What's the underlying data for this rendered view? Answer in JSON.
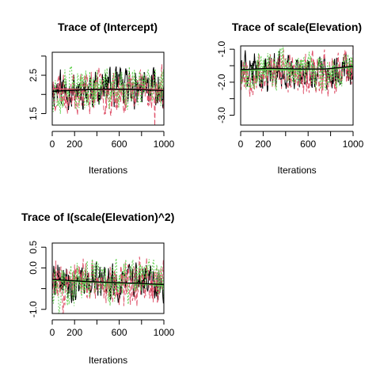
{
  "chart_data": [
    {
      "type": "line",
      "title": "Trace of (Intercept)",
      "xlabel": "Iterations",
      "ylabel": "",
      "xlim": [
        0,
        1000
      ],
      "ylim": [
        1.2,
        3.1
      ],
      "xticks": [
        0,
        200,
        600,
        1000
      ],
      "xtick_labels": [
        "0",
        "200",
        "600",
        "1000"
      ],
      "yticks": [
        1.5,
        2.5
      ],
      "ytick_labels": [
        "1.5",
        "2.5"
      ],
      "ytick_minor": [
        1.5,
        2.0,
        2.5,
        3.0
      ],
      "chains": [
        {
          "color": "#000000",
          "dash": "",
          "center": 2.15,
          "spread": 0.28,
          "seed": 11
        },
        {
          "color": "#DF536B",
          "dash": "6,3",
          "center": 2.12,
          "spread": 0.32,
          "seed": 23
        },
        {
          "color": "#61D04F",
          "dash": "2,2",
          "center": 2.13,
          "spread": 0.3,
          "seed": 37
        }
      ],
      "trend": {
        "color": "#000000",
        "y": [
          2.08,
          2.12,
          2.14,
          2.13,
          2.1
        ]
      },
      "trend2": {
        "color": "#DF536B",
        "y": [
          2.15,
          2.13,
          2.12,
          2.14,
          2.12
        ]
      }
    },
    {
      "type": "line",
      "title": "Trace of scale(Elevation)",
      "xlabel": "Iterations",
      "ylabel": "",
      "xlim": [
        0,
        1000
      ],
      "ylim": [
        -3.3,
        -0.9
      ],
      "xticks": [
        0,
        200,
        600,
        1000
      ],
      "xtick_labels": [
        "0",
        "200",
        "600",
        "1000"
      ],
      "yticks": [
        -1.0,
        -2.0,
        -3.0
      ],
      "ytick_labels": [
        "-1.0",
        "-2.0",
        "-3.0"
      ],
      "ytick_minor": [
        -1.0,
        -1.5,
        -2.0,
        -2.5,
        -3.0
      ],
      "chains": [
        {
          "color": "#000000",
          "dash": "",
          "center": -1.65,
          "spread": 0.3,
          "seed": 41
        },
        {
          "color": "#DF536B",
          "dash": "6,3",
          "center": -1.7,
          "spread": 0.35,
          "seed": 53
        },
        {
          "color": "#61D04F",
          "dash": "2,2",
          "center": -1.65,
          "spread": 0.3,
          "seed": 67
        }
      ],
      "trend": {
        "color": "#000000",
        "y": [
          -1.62,
          -1.58,
          -1.6,
          -1.6,
          -1.52
        ]
      },
      "trend2": {
        "color": "#61D04F",
        "y": [
          -1.65,
          -1.62,
          -1.63,
          -1.6,
          -1.55
        ]
      }
    },
    {
      "type": "line",
      "title": "Trace of I(scale(Elevation)^2)",
      "xlabel": "Iterations",
      "ylabel": "",
      "xlim": [
        0,
        1000
      ],
      "ylim": [
        -1.1,
        0.6
      ],
      "xticks": [
        0,
        200,
        600,
        1000
      ],
      "xtick_labels": [
        "0",
        "200",
        "600",
        "1000"
      ],
      "yticks": [
        0.5,
        0.0,
        -1.0
      ],
      "ytick_labels": [
        "0.5",
        "0.0",
        "-1.0"
      ],
      "ytick_minor": [
        0.5,
        0.0,
        -0.5,
        -1.0
      ],
      "chains": [
        {
          "color": "#000000",
          "dash": "",
          "center": -0.35,
          "spread": 0.25,
          "seed": 71
        },
        {
          "color": "#DF536B",
          "dash": "6,3",
          "center": -0.33,
          "spread": 0.3,
          "seed": 83
        },
        {
          "color": "#61D04F",
          "dash": "2,2",
          "center": -0.35,
          "spread": 0.27,
          "seed": 97
        }
      ],
      "trend": {
        "color": "#000000",
        "y": [
          -0.28,
          -0.32,
          -0.35,
          -0.37,
          -0.4
        ]
      },
      "trend2": {
        "color": "#61D04F",
        "y": [
          -0.3,
          -0.33,
          -0.36,
          -0.38,
          -0.42
        ]
      }
    }
  ]
}
